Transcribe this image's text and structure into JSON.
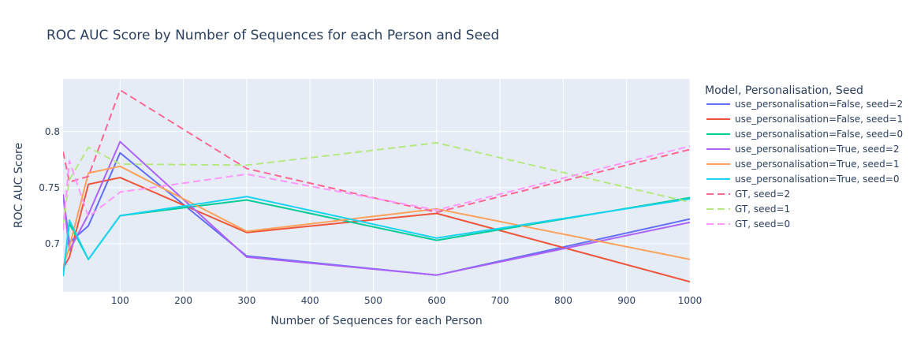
{
  "chart_data": {
    "type": "line",
    "title": "ROC AUC Score by Number of Sequences for each Person and Seed",
    "xlabel": "Number of Sequences for each Person",
    "ylabel": "ROC AUC Score",
    "xlim": [
      10,
      1000
    ],
    "ylim": [
      0.657,
      0.847
    ],
    "xticks": [
      100,
      200,
      300,
      400,
      500,
      600,
      700,
      800,
      900,
      1000
    ],
    "yticks": [
      0.7,
      0.75,
      0.8
    ],
    "ytick_labels": [
      "0.7",
      "0.75",
      "0.8"
    ],
    "grid": true,
    "legend_title": "Model, Personalisation, Seed",
    "legend_position": "right",
    "x": [
      10,
      20,
      50,
      100,
      300,
      600,
      1000
    ],
    "series": [
      {
        "name": "use_personalisation=False, seed=2",
        "color": "#636efa",
        "dash": "solid",
        "values": [
          0.744,
          0.701,
          0.716,
          0.781,
          0.689,
          0.672,
          0.722
        ]
      },
      {
        "name": "use_personalisation=False, seed=1",
        "color": "#ef553b",
        "dash": "solid",
        "values": [
          0.678,
          0.688,
          0.753,
          0.759,
          0.71,
          0.727,
          0.666
        ]
      },
      {
        "name": "use_personalisation=False, seed=0",
        "color": "#00cc96",
        "dash": "solid",
        "values": [
          0.671,
          0.718,
          0.686,
          0.725,
          0.739,
          0.703,
          0.741
        ]
      },
      {
        "name": "use_personalisation=True, seed=2",
        "color": "#ab63fa",
        "dash": "solid",
        "values": [
          0.744,
          0.694,
          0.726,
          0.791,
          0.688,
          0.672,
          0.719
        ]
      },
      {
        "name": "use_personalisation=True, seed=1",
        "color": "#ffa15a",
        "dash": "solid",
        "values": [
          0.679,
          0.697,
          0.763,
          0.769,
          0.711,
          0.731,
          0.686
        ]
      },
      {
        "name": "use_personalisation=True, seed=0",
        "color": "#19d3f3",
        "dash": "solid",
        "values": [
          0.671,
          0.721,
          0.686,
          0.725,
          0.742,
          0.705,
          0.74
        ]
      },
      {
        "name": "GT, seed=2",
        "color": "#ff6692",
        "dash": "dash",
        "values": [
          0.782,
          0.755,
          0.76,
          0.837,
          0.767,
          0.728,
          0.784
        ]
      },
      {
        "name": "GT, seed=1",
        "color": "#b6e880",
        "dash": "dash",
        "values": [
          0.718,
          0.757,
          0.786,
          0.771,
          0.77,
          0.79,
          0.737
        ]
      },
      {
        "name": "GT, seed=0",
        "color": "#ff97ff",
        "dash": "dash",
        "values": [
          0.712,
          0.774,
          0.724,
          0.746,
          0.762,
          0.73,
          0.787
        ]
      }
    ]
  }
}
